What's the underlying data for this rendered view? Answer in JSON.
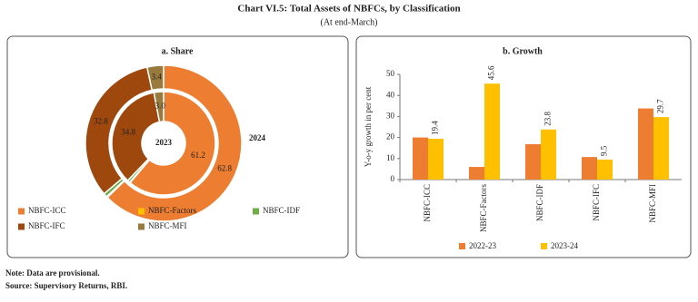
{
  "title": "Chart VI.5: Total Assets of NBFCs, by Classification",
  "subtitle": "(At end-March)",
  "notes": [
    "Note: Data are provisional.",
    "Source: Supervisory Returns, RBI."
  ],
  "chart_data": [
    {
      "type": "donut",
      "title": "a. Share",
      "categories": [
        "NBFC-ICC",
        "NBFC-Factors",
        "NBFC-IDF",
        "NBFC-IFC",
        "NBFC-MFI"
      ],
      "colors": [
        "#ed7d31",
        "#ffc000",
        "#70ad47",
        "#9e480e",
        "#997a3d"
      ],
      "rings": [
        {
          "name": "2023",
          "values": [
            61.2,
            0.2,
            0.8,
            34.8,
            3.0
          ],
          "value_labels": [
            "61.2",
            null,
            null,
            "34.8",
            "3.0"
          ]
        },
        {
          "name": "2024",
          "values": [
            62.8,
            0.2,
            0.8,
            32.8,
            3.4
          ],
          "value_labels": [
            "62.8",
            null,
            null,
            "32.8",
            "3.4"
          ]
        }
      ]
    },
    {
      "type": "bar",
      "title": "b. Growth",
      "categories": [
        "NBFC-ICC",
        "NBFC-Factors",
        "NBFC-IDF",
        "NBFC-IFC",
        "NBFC-MFI"
      ],
      "ylabel": "Y-o-y growth in per cent",
      "ylim": [
        0,
        50
      ],
      "yticks": [
        0,
        10,
        20,
        30,
        40,
        50
      ],
      "series": [
        {
          "name": "2022-23",
          "color": "#ed7d31",
          "values": [
            20.0,
            6.0,
            16.8,
            10.7,
            33.8
          ],
          "data_labels": false
        },
        {
          "name": "2023-24",
          "color": "#ffc000",
          "values": [
            19.4,
            45.6,
            23.8,
            9.5,
            29.7
          ],
          "data_labels": true
        }
      ]
    }
  ]
}
